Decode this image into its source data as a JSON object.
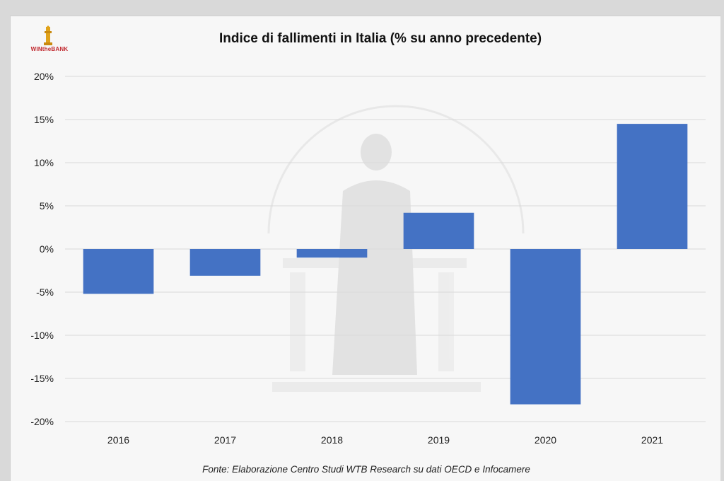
{
  "header": {
    "logo_text": "WINtheBANK"
  },
  "chart_data": {
    "type": "bar",
    "title": "Indice di fallimenti in Italia (% su anno precedente)",
    "categories": [
      "2016",
      "2017",
      "2018",
      "2019",
      "2020",
      "2021"
    ],
    "values": [
      -5.2,
      -3.1,
      -1.0,
      4.2,
      -18.0,
      14.5
    ],
    "ylim": [
      -20,
      20
    ],
    "yticks": [
      20,
      15,
      10,
      5,
      0,
      -5,
      -10,
      -15,
      -20
    ],
    "ytick_labels": [
      "20%",
      "15%",
      "10%",
      "5%",
      "0%",
      "-5%",
      "-10%",
      "-15%",
      "-20%"
    ],
    "grid": true,
    "bar_color": "#4472c4",
    "source": "Fonte: Elaborazione Centro Studi WTB Research su dati OECD e Infocamere"
  }
}
